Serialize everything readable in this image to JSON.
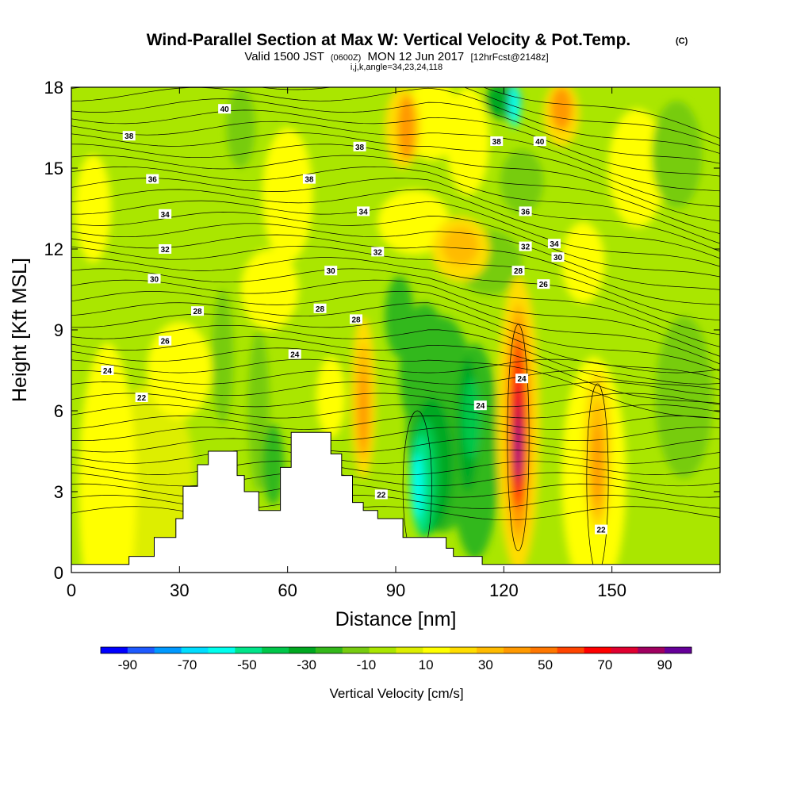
{
  "chart_data": {
    "type": "heatmap",
    "title": "Wind-Parallel Section at Max W: Vertical Velocity & Pot.Temp.",
    "title_mark": "(C)",
    "subtitle_parts": [
      "Valid 1500 JST",
      "(0600Z)",
      "MON 12 Jun 2017",
      "[12hrFcst@2148z]"
    ],
    "subtitle2": "i,j,k,angle=34,23,24,118",
    "xlabel": "Distance [nm]",
    "ylabel": "Height [Kft MSL]",
    "xlim": [
      0,
      180
    ],
    "ylim": [
      0,
      18
    ],
    "x_ticks": [
      0,
      30,
      60,
      90,
      120,
      150
    ],
    "y_ticks": [
      0,
      3,
      6,
      9,
      12,
      15,
      18
    ],
    "colorbar": {
      "label": "Vertical Velocity [cm/s]",
      "ticks": [
        -90,
        -70,
        -50,
        -30,
        -10,
        10,
        30,
        50,
        70,
        90
      ],
      "colors": [
        "#0000ff",
        "#1e5aff",
        "#0099ff",
        "#00ddff",
        "#00ffee",
        "#00e58a",
        "#00c74a",
        "#00a820",
        "#33b81a",
        "#77cc10",
        "#aae600",
        "#ddee00",
        "#ffff00",
        "#ffdd00",
        "#ffbb00",
        "#ff9900",
        "#ff7700",
        "#ff4400",
        "#ff0000",
        "#e00030",
        "#a00060",
        "#660099"
      ]
    },
    "theta_contours": {
      "levels": [
        22,
        24,
        26,
        28,
        30,
        32,
        34,
        36,
        38,
        40
      ],
      "labels": [
        {
          "text": "40",
          "x": 42.5,
          "y": 17.2
        },
        {
          "text": "38",
          "x": 16,
          "y": 16.2
        },
        {
          "text": "38",
          "x": 80,
          "y": 15.8
        },
        {
          "text": "38",
          "x": 66,
          "y": 14.6
        },
        {
          "text": "38",
          "x": 118,
          "y": 16.0
        },
        {
          "text": "40",
          "x": 130,
          "y": 16.0
        },
        {
          "text": "36",
          "x": 22.5,
          "y": 14.6
        },
        {
          "text": "36",
          "x": 126,
          "y": 13.4
        },
        {
          "text": "34",
          "x": 26,
          "y": 13.3
        },
        {
          "text": "34",
          "x": 81,
          "y": 13.4
        },
        {
          "text": "34",
          "x": 134,
          "y": 12.2
        },
        {
          "text": "32",
          "x": 26,
          "y": 12.0
        },
        {
          "text": "32",
          "x": 85,
          "y": 11.9
        },
        {
          "text": "32",
          "x": 126,
          "y": 12.1
        },
        {
          "text": "30",
          "x": 23,
          "y": 10.9
        },
        {
          "text": "30",
          "x": 72,
          "y": 11.2
        },
        {
          "text": "30",
          "x": 135,
          "y": 11.7
        },
        {
          "text": "28",
          "x": 35,
          "y": 9.7
        },
        {
          "text": "28",
          "x": 69,
          "y": 9.8
        },
        {
          "text": "28",
          "x": 79,
          "y": 9.4
        },
        {
          "text": "28",
          "x": 124,
          "y": 11.2
        },
        {
          "text": "26",
          "x": 26,
          "y": 8.6
        },
        {
          "text": "26",
          "x": 131,
          "y": 10.7
        },
        {
          "text": "24",
          "x": 10,
          "y": 7.5
        },
        {
          "text": "24",
          "x": 62,
          "y": 8.1
        },
        {
          "text": "24",
          "x": 113.5,
          "y": 6.2
        },
        {
          "text": "24",
          "x": 125,
          "y": 7.2
        },
        {
          "text": "22",
          "x": 19.5,
          "y": 6.5
        },
        {
          "text": "22",
          "x": 86,
          "y": 2.9
        },
        {
          "text": "22",
          "x": 147,
          "y": 1.6
        }
      ]
    },
    "terrain_profile": [
      [
        0,
        0.3
      ],
      [
        16,
        0.3
      ],
      [
        16,
        0.6
      ],
      [
        23,
        0.6
      ],
      [
        23,
        1.3
      ],
      [
        29,
        1.3
      ],
      [
        29,
        2.0
      ],
      [
        31,
        2.0
      ],
      [
        31,
        3.2
      ],
      [
        35,
        3.2
      ],
      [
        35,
        4.0
      ],
      [
        38,
        4.0
      ],
      [
        38,
        4.5
      ],
      [
        46,
        4.5
      ],
      [
        46,
        3.6
      ],
      [
        48,
        3.6
      ],
      [
        48,
        3.0
      ],
      [
        52,
        3.0
      ],
      [
        52,
        2.3
      ],
      [
        58,
        2.3
      ],
      [
        58,
        3.9
      ],
      [
        61,
        3.9
      ],
      [
        61,
        5.2
      ],
      [
        72,
        5.2
      ],
      [
        72,
        4.4
      ],
      [
        75,
        4.4
      ],
      [
        75,
        3.6
      ],
      [
        78,
        3.6
      ],
      [
        78,
        2.6
      ],
      [
        81,
        2.6
      ],
      [
        81,
        2.3
      ],
      [
        85,
        2.3
      ],
      [
        85,
        2.0
      ],
      [
        92,
        2.0
      ],
      [
        92,
        1.3
      ],
      [
        104,
        1.3
      ],
      [
        104,
        0.9
      ],
      [
        106,
        0.9
      ],
      [
        106,
        0.6
      ],
      [
        114,
        0.6
      ],
      [
        114,
        0.3
      ],
      [
        180,
        0.3
      ]
    ]
  }
}
